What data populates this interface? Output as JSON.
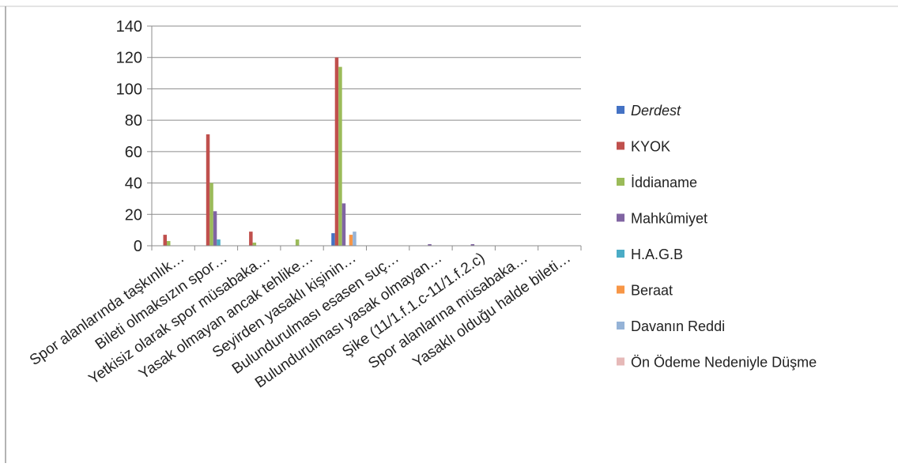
{
  "chart_data": {
    "type": "bar",
    "title": "",
    "xlabel": "",
    "ylabel": "",
    "ylim": [
      0,
      140
    ],
    "yticks": [
      0,
      20,
      40,
      60,
      80,
      100,
      120,
      140
    ],
    "grid": true,
    "legend_position": "right",
    "categories": [
      "Spor alanlarında taşkınlık…",
      "Bileti olmaksızın spor…",
      "Yetkisiz olarak spor müsabaka…",
      "Yasak olmayan ancak tehlike…",
      "Seyirden yasaklı kişinin…",
      "Bulundurulması esasen suç…",
      "Bulundurulması yasak olmayan…",
      "Şike (11/1.f.1.c-11/1.f.2.c)",
      "Spor alanlarına müsabaka…",
      "Yasaklı olduğu halde bileti…"
    ],
    "series": [
      {
        "name": "Derdest",
        "color": "#4472C4",
        "values": [
          0,
          0,
          0,
          0,
          8,
          0,
          0,
          0,
          0,
          0
        ]
      },
      {
        "name": "KYOK",
        "color": "#C0504D",
        "values": [
          7,
          71,
          9,
          0,
          120,
          0,
          0,
          0,
          0,
          0
        ]
      },
      {
        "name": "İddianame",
        "color": "#9BBB59",
        "values": [
          3,
          40,
          2,
          4,
          114,
          0,
          0,
          0,
          0,
          0
        ]
      },
      {
        "name": "Mahkûmiyet",
        "color": "#8064A2",
        "values": [
          0,
          22,
          0,
          0,
          27,
          0,
          1,
          1,
          0,
          0
        ]
      },
      {
        "name": "H.A.G.B",
        "color": "#4BACC6",
        "values": [
          0,
          4,
          0,
          0,
          0,
          0,
          0,
          0,
          0,
          0
        ]
      },
      {
        "name": "Beraat",
        "color": "#F79646",
        "values": [
          0,
          0,
          0,
          0,
          7,
          0,
          0,
          0,
          0,
          0
        ]
      },
      {
        "name": "Davanın Reddi",
        "color": "#95B3D7",
        "values": [
          0,
          0,
          0,
          0,
          9,
          0,
          0,
          0,
          0,
          0
        ]
      },
      {
        "name": "Ön Ödeme Nedeniyle Düşme",
        "color": "#E6B9B8",
        "values": [
          0,
          0,
          0,
          0,
          0,
          0,
          0,
          0,
          0,
          0
        ]
      }
    ]
  }
}
